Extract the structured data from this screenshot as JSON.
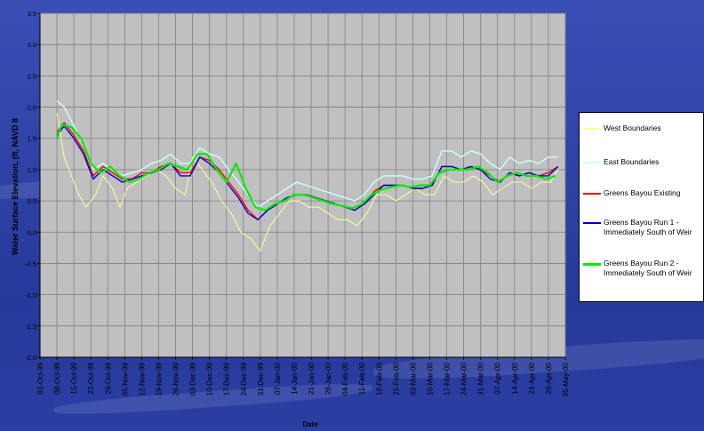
{
  "chart_data": {
    "type": "line",
    "ylabel": "Water Surface Elevation, (ft, NAVD 8",
    "xlabel": "Date",
    "ylim": [
      -2.0,
      3.5
    ],
    "yticks": [
      "-2.0",
      "-1.5",
      "-1.0",
      "-0.5",
      "0.0",
      "0.5",
      "1.0",
      "1.5",
      "2.0",
      "2.5",
      "3.0",
      "3.5"
    ],
    "xticks": [
      "01-Oct-99",
      "08-Oct-99",
      "15-Oct-99",
      "22-Oct-99",
      "29-Oct-99",
      "05-Nov-99",
      "12-Nov-99",
      "19-Nov-99",
      "26-Nov-99",
      "03-Dec-99",
      "10-Dec-99",
      "17-Dec-99",
      "24-Dec-99",
      "31-Dec-99",
      "07-Jan-00",
      "14-Jan-00",
      "21-Jan-00",
      "28-Jan-00",
      "04-Feb-00",
      "11-Feb-00",
      "18-Feb-00",
      "25-Feb-00",
      "03-Mar-00",
      "10-Mar-00",
      "17-Mar-00",
      "24-Mar-00",
      "31-Mar-00",
      "07-Apr-00",
      "14-Apr-00",
      "21-Apr-00",
      "28-Apr-00",
      "05-May-00"
    ],
    "grid": true,
    "legend_position": "right",
    "series": [
      {
        "name": "West Boundaries",
        "color": "#ffff99",
        "data": [
          [
            "08-Oct-99",
            1.9
          ],
          [
            "11-Oct-99",
            1.2
          ],
          [
            "14-Oct-99",
            0.9
          ],
          [
            "17-Oct-99",
            0.6
          ],
          [
            "20-Oct-99",
            0.4
          ],
          [
            "24-Oct-99",
            0.6
          ],
          [
            "27-Oct-99",
            0.9
          ],
          [
            "31-Oct-99",
            0.7
          ],
          [
            "03-Nov-99",
            0.4
          ],
          [
            "06-Nov-99",
            0.7
          ],
          [
            "10-Nov-99",
            0.8
          ],
          [
            "14-Nov-99",
            0.9
          ],
          [
            "18-Nov-99",
            1.0
          ],
          [
            "22-Nov-99",
            0.9
          ],
          [
            "26-Nov-99",
            0.7
          ],
          [
            "30-Nov-99",
            0.6
          ],
          [
            "03-Dec-99",
            1.2
          ],
          [
            "07-Dec-99",
            1.0
          ],
          [
            "11-Dec-99",
            0.8
          ],
          [
            "15-Dec-99",
            0.5
          ],
          [
            "19-Dec-99",
            0.3
          ],
          [
            "23-Dec-99",
            0.0
          ],
          [
            "27-Dec-99",
            -0.1
          ],
          [
            "31-Dec-99",
            -0.3
          ],
          [
            "04-Jan-00",
            0.1
          ],
          [
            "08-Jan-00",
            0.3
          ],
          [
            "12-Jan-00",
            0.5
          ],
          [
            "16-Jan-00",
            0.5
          ],
          [
            "20-Jan-00",
            0.4
          ],
          [
            "24-Jan-00",
            0.4
          ],
          [
            "28-Jan-00",
            0.3
          ],
          [
            "01-Feb-00",
            0.2
          ],
          [
            "05-Feb-00",
            0.2
          ],
          [
            "09-Feb-00",
            0.1
          ],
          [
            "13-Feb-00",
            0.3
          ],
          [
            "17-Feb-00",
            0.6
          ],
          [
            "21-Feb-00",
            0.6
          ],
          [
            "25-Feb-00",
            0.5
          ],
          [
            "29-Feb-00",
            0.6
          ],
          [
            "04-Mar-00",
            0.7
          ],
          [
            "08-Mar-00",
            0.6
          ],
          [
            "12-Mar-00",
            0.6
          ],
          [
            "16-Mar-00",
            0.9
          ],
          [
            "20-Mar-00",
            0.8
          ],
          [
            "24-Mar-00",
            0.8
          ],
          [
            "28-Mar-00",
            0.9
          ],
          [
            "01-Apr-00",
            0.8
          ],
          [
            "05-Apr-00",
            0.6
          ],
          [
            "09-Apr-00",
            0.7
          ],
          [
            "13-Apr-00",
            0.8
          ],
          [
            "17-Apr-00",
            0.8
          ],
          [
            "21-Apr-00",
            0.7
          ],
          [
            "25-Apr-00",
            0.8
          ],
          [
            "29-Apr-00",
            0.8
          ],
          [
            "02-May-00",
            1.0
          ]
        ]
      },
      {
        "name": "East Boundaries",
        "color": "#ccffff",
        "data": [
          [
            "08-Oct-99",
            2.1
          ],
          [
            "11-Oct-99",
            2.0
          ],
          [
            "15-Oct-99",
            1.7
          ],
          [
            "19-Oct-99",
            1.4
          ],
          [
            "23-Oct-99",
            1.0
          ],
          [
            "27-Oct-99",
            1.1
          ],
          [
            "31-Oct-99",
            1.0
          ],
          [
            "04-Nov-99",
            0.9
          ],
          [
            "08-Nov-99",
            0.95
          ],
          [
            "12-Nov-99",
            1.0
          ],
          [
            "16-Nov-99",
            1.1
          ],
          [
            "20-Nov-99",
            1.15
          ],
          [
            "24-Nov-99",
            1.25
          ],
          [
            "28-Nov-99",
            1.1
          ],
          [
            "02-Dec-99",
            1.1
          ],
          [
            "06-Dec-99",
            1.35
          ],
          [
            "10-Dec-99",
            1.25
          ],
          [
            "14-Dec-99",
            1.2
          ],
          [
            "18-Dec-99",
            1.0
          ],
          [
            "22-Dec-99",
            0.8
          ],
          [
            "26-Dec-99",
            0.6
          ],
          [
            "30-Dec-99",
            0.4
          ],
          [
            "03-Jan-00",
            0.5
          ],
          [
            "07-Jan-00",
            0.6
          ],
          [
            "11-Jan-00",
            0.7
          ],
          [
            "15-Jan-00",
            0.8
          ],
          [
            "19-Jan-00",
            0.75
          ],
          [
            "23-Jan-00",
            0.7
          ],
          [
            "27-Jan-00",
            0.65
          ],
          [
            "31-Jan-00",
            0.6
          ],
          [
            "04-Feb-00",
            0.55
          ],
          [
            "08-Feb-00",
            0.5
          ],
          [
            "12-Feb-00",
            0.6
          ],
          [
            "16-Feb-00",
            0.8
          ],
          [
            "20-Feb-00",
            0.9
          ],
          [
            "24-Feb-00",
            0.9
          ],
          [
            "28-Feb-00",
            0.9
          ],
          [
            "03-Mar-00",
            0.85
          ],
          [
            "07-Mar-00",
            0.85
          ],
          [
            "11-Mar-00",
            0.9
          ],
          [
            "15-Mar-00",
            1.3
          ],
          [
            "19-Mar-00",
            1.3
          ],
          [
            "23-Mar-00",
            1.2
          ],
          [
            "27-Mar-00",
            1.3
          ],
          [
            "31-Mar-00",
            1.25
          ],
          [
            "04-Apr-00",
            1.1
          ],
          [
            "08-Apr-00",
            1.0
          ],
          [
            "12-Apr-00",
            1.2
          ],
          [
            "16-Apr-00",
            1.1
          ],
          [
            "20-Apr-00",
            1.15
          ],
          [
            "24-Apr-00",
            1.1
          ],
          [
            "28-Apr-00",
            1.2
          ],
          [
            "02-May-00",
            1.2
          ]
        ]
      },
      {
        "name": "Greens Bayou Existing",
        "color": "#ff0000",
        "data": [
          [
            "08-Oct-99",
            1.6
          ],
          [
            "11-Oct-99",
            1.75
          ],
          [
            "15-Oct-99",
            1.55
          ],
          [
            "19-Oct-99",
            1.3
          ],
          [
            "23-Oct-99",
            0.9
          ],
          [
            "27-Oct-99",
            1.05
          ],
          [
            "31-Oct-99",
            0.95
          ],
          [
            "04-Nov-99",
            0.85
          ],
          [
            "08-Nov-99",
            0.85
          ],
          [
            "12-Nov-99",
            0.95
          ],
          [
            "16-Nov-99",
            0.95
          ],
          [
            "20-Nov-99",
            1.05
          ],
          [
            "24-Nov-99",
            1.1
          ],
          [
            "28-Nov-99",
            0.95
          ],
          [
            "02-Dec-99",
            0.95
          ],
          [
            "06-Dec-99",
            1.2
          ],
          [
            "10-Dec-99",
            1.15
          ],
          [
            "14-Dec-99",
            1.0
          ],
          [
            "18-Dec-99",
            0.8
          ],
          [
            "22-Dec-99",
            0.6
          ],
          [
            "26-Dec-99",
            0.35
          ],
          [
            "30-Dec-99",
            0.2
          ],
          [
            "03-Jan-00",
            0.35
          ],
          [
            "07-Jan-00",
            0.45
          ],
          [
            "11-Jan-00",
            0.55
          ],
          [
            "15-Jan-00",
            0.6
          ],
          [
            "19-Jan-00",
            0.6
          ],
          [
            "23-Jan-00",
            0.55
          ],
          [
            "27-Jan-00",
            0.5
          ],
          [
            "31-Jan-00",
            0.45
          ],
          [
            "04-Feb-00",
            0.4
          ],
          [
            "08-Feb-00",
            0.35
          ],
          [
            "12-Feb-00",
            0.45
          ],
          [
            "16-Feb-00",
            0.65
          ],
          [
            "20-Feb-00",
            0.75
          ],
          [
            "24-Feb-00",
            0.75
          ],
          [
            "28-Feb-00",
            0.75
          ],
          [
            "03-Mar-00",
            0.7
          ],
          [
            "07-Mar-00",
            0.7
          ],
          [
            "11-Mar-00",
            0.75
          ],
          [
            "15-Mar-00",
            1.05
          ],
          [
            "19-Mar-00",
            1.05
          ],
          [
            "23-Mar-00",
            1.0
          ],
          [
            "27-Mar-00",
            1.05
          ],
          [
            "31-Mar-00",
            1.0
          ],
          [
            "04-Apr-00",
            0.9
          ],
          [
            "08-Apr-00",
            0.8
          ],
          [
            "12-Apr-00",
            0.95
          ],
          [
            "16-Apr-00",
            0.9
          ],
          [
            "20-Apr-00",
            0.95
          ],
          [
            "24-Apr-00",
            0.9
          ],
          [
            "28-Apr-00",
            0.95
          ],
          [
            "02-May-00",
            1.05
          ]
        ]
      },
      {
        "name": "Greens Bayou Run 1 -\nImmediately South of Weir",
        "color": "#0000cc",
        "data": [
          [
            "08-Oct-99",
            1.55
          ],
          [
            "11-Oct-99",
            1.7
          ],
          [
            "15-Oct-99",
            1.5
          ],
          [
            "19-Oct-99",
            1.25
          ],
          [
            "23-Oct-99",
            0.85
          ],
          [
            "27-Oct-99",
            1.0
          ],
          [
            "31-Oct-99",
            0.9
          ],
          [
            "04-Nov-99",
            0.8
          ],
          [
            "08-Nov-99",
            0.85
          ],
          [
            "12-Nov-99",
            0.9
          ],
          [
            "16-Nov-99",
            0.95
          ],
          [
            "20-Nov-99",
            1.0
          ],
          [
            "24-Nov-99",
            1.1
          ],
          [
            "28-Nov-99",
            0.9
          ],
          [
            "02-Dec-99",
            0.9
          ],
          [
            "06-Dec-99",
            1.2
          ],
          [
            "10-Dec-99",
            1.1
          ],
          [
            "14-Dec-99",
            0.95
          ],
          [
            "18-Dec-99",
            0.75
          ],
          [
            "22-Dec-99",
            0.55
          ],
          [
            "26-Dec-99",
            0.3
          ],
          [
            "30-Dec-99",
            0.2
          ],
          [
            "03-Jan-00",
            0.35
          ],
          [
            "07-Jan-00",
            0.45
          ],
          [
            "11-Jan-00",
            0.55
          ],
          [
            "15-Jan-00",
            0.6
          ],
          [
            "19-Jan-00",
            0.6
          ],
          [
            "23-Jan-00",
            0.55
          ],
          [
            "27-Jan-00",
            0.5
          ],
          [
            "31-Jan-00",
            0.45
          ],
          [
            "04-Feb-00",
            0.4
          ],
          [
            "08-Feb-00",
            0.35
          ],
          [
            "12-Feb-00",
            0.45
          ],
          [
            "16-Feb-00",
            0.6
          ],
          [
            "20-Feb-00",
            0.75
          ],
          [
            "24-Feb-00",
            0.75
          ],
          [
            "28-Feb-00",
            0.75
          ],
          [
            "03-Mar-00",
            0.7
          ],
          [
            "07-Mar-00",
            0.7
          ],
          [
            "11-Mar-00",
            0.75
          ],
          [
            "15-Mar-00",
            1.05
          ],
          [
            "19-Mar-00",
            1.05
          ],
          [
            "23-Mar-00",
            1.0
          ],
          [
            "27-Mar-00",
            1.05
          ],
          [
            "31-Mar-00",
            1.0
          ],
          [
            "04-Apr-00",
            0.85
          ],
          [
            "08-Apr-00",
            0.8
          ],
          [
            "12-Apr-00",
            0.95
          ],
          [
            "16-Apr-00",
            0.9
          ],
          [
            "20-Apr-00",
            0.95
          ],
          [
            "24-Apr-00",
            0.9
          ],
          [
            "28-Apr-00",
            0.9
          ],
          [
            "02-May-00",
            1.05
          ]
        ]
      },
      {
        "name": "Greens Bayou Run 2 -\nImmediately South of Weir",
        "color": "#00ee00",
        "data": [
          [
            "08-Oct-99",
            1.5
          ],
          [
            "10-Oct-99",
            1.72
          ],
          [
            "14-Oct-99",
            1.68
          ],
          [
            "18-Oct-99",
            1.5
          ],
          [
            "22-Oct-99",
            1.1
          ],
          [
            "26-Oct-99",
            0.95
          ],
          [
            "30-Oct-99",
            1.05
          ],
          [
            "03-Nov-99",
            0.9
          ],
          [
            "07-Nov-99",
            0.8
          ],
          [
            "11-Nov-99",
            0.85
          ],
          [
            "15-Nov-99",
            0.95
          ],
          [
            "19-Nov-99",
            1.0
          ],
          [
            "23-Nov-99",
            1.1
          ],
          [
            "27-Nov-99",
            1.05
          ],
          [
            "01-Dec-99",
            1.0
          ],
          [
            "05-Dec-99",
            1.25
          ],
          [
            "09-Dec-99",
            1.25
          ],
          [
            "13-Dec-99",
            1.0
          ],
          [
            "17-Dec-99",
            0.8
          ],
          [
            "21-Dec-99",
            1.1
          ],
          [
            "25-Dec-99",
            0.7
          ],
          [
            "29-Dec-99",
            0.4
          ],
          [
            "02-Jan-00",
            0.35
          ],
          [
            "06-Jan-00",
            0.45
          ],
          [
            "10-Jan-00",
            0.5
          ],
          [
            "14-Jan-00",
            0.6
          ],
          [
            "18-Jan-00",
            0.6
          ],
          [
            "22-Jan-00",
            0.55
          ],
          [
            "26-Jan-00",
            0.5
          ],
          [
            "30-Jan-00",
            0.45
          ],
          [
            "03-Feb-00",
            0.42
          ],
          [
            "07-Feb-00",
            0.38
          ],
          [
            "11-Feb-00",
            0.45
          ],
          [
            "15-Feb-00",
            0.6
          ],
          [
            "19-Feb-00",
            0.68
          ],
          [
            "23-Feb-00",
            0.72
          ],
          [
            "27-Feb-00",
            0.75
          ],
          [
            "02-Mar-00",
            0.72
          ],
          [
            "06-Mar-00",
            0.75
          ],
          [
            "10-Mar-00",
            0.75
          ],
          [
            "14-Mar-00",
            0.95
          ],
          [
            "18-Mar-00",
            1.0
          ],
          [
            "22-Mar-00",
            1.0
          ],
          [
            "26-Mar-00",
            1.0
          ],
          [
            "30-Mar-00",
            1.05
          ],
          [
            "03-Apr-00",
            0.95
          ],
          [
            "07-Apr-00",
            0.8
          ],
          [
            "11-Apr-00",
            0.9
          ],
          [
            "15-Apr-00",
            0.95
          ],
          [
            "19-Apr-00",
            0.9
          ],
          [
            "23-Apr-00",
            0.9
          ],
          [
            "27-Apr-00",
            0.85
          ],
          [
            "01-May-00",
            0.9
          ]
        ]
      }
    ]
  }
}
